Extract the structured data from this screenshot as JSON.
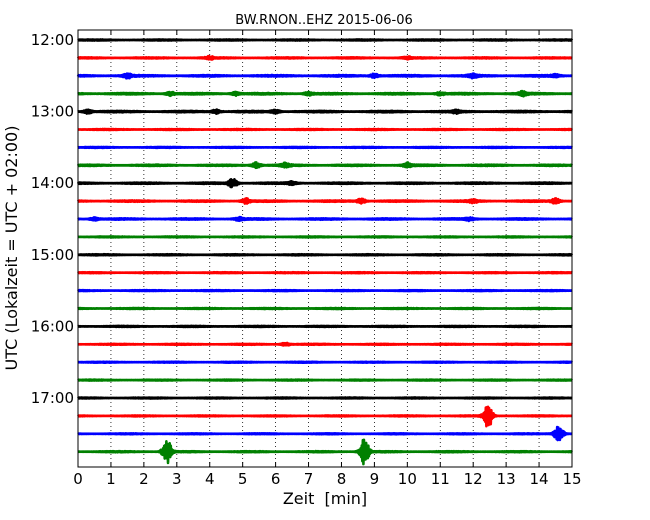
{
  "chart_data": {
    "type": "line",
    "title": "BW.RNON..EHZ 2015-06-06",
    "xlabel": "Zeit  [min]",
    "ylabel": "UTC (Lokalzeit = UTC + 02:00)",
    "xlim": [
      0,
      15
    ],
    "x_ticks": [
      "0",
      "1",
      "2",
      "3",
      "4",
      "5",
      "6",
      "7",
      "8",
      "9",
      "10",
      "11",
      "12",
      "13",
      "14",
      "15"
    ],
    "y_tick_labels": [
      "12:00",
      "13:00",
      "14:00",
      "15:00",
      "16:00",
      "17:00"
    ],
    "grid": "vertical dotted",
    "colors": [
      "#000000",
      "#ff0000",
      "#0000ff",
      "#008000"
    ],
    "trace_interval_min": 15,
    "series": [
      {
        "start": "12:00",
        "noise": 0.35,
        "events": []
      },
      {
        "start": "12:15",
        "noise": 0.35,
        "events": [
          {
            "t": 4.0,
            "amp": 1.5
          },
          {
            "t": 10.0,
            "amp": 1.2
          }
        ]
      },
      {
        "start": "12:30",
        "noise": 0.5,
        "events": [
          {
            "t": 1.5,
            "amp": 2.5
          },
          {
            "t": 9.0,
            "amp": 2.0
          },
          {
            "t": 12.0,
            "amp": 1.8
          },
          {
            "t": 14.5,
            "amp": 1.5
          }
        ]
      },
      {
        "start": "12:45",
        "noise": 0.5,
        "events": [
          {
            "t": 2.8,
            "amp": 2.0
          },
          {
            "t": 4.8,
            "amp": 1.8
          },
          {
            "t": 7.0,
            "amp": 1.5
          },
          {
            "t": 11.0,
            "amp": 1.5
          },
          {
            "t": 13.5,
            "amp": 2.0
          }
        ]
      },
      {
        "start": "13:00",
        "noise": 0.5,
        "events": [
          {
            "t": 0.3,
            "amp": 2.0
          },
          {
            "t": 4.2,
            "amp": 2.0
          },
          {
            "t": 6.0,
            "amp": 1.8
          },
          {
            "t": 11.5,
            "amp": 1.5
          }
        ]
      },
      {
        "start": "13:15",
        "noise": 0.3,
        "events": []
      },
      {
        "start": "13:30",
        "noise": 0.3,
        "events": []
      },
      {
        "start": "13:45",
        "noise": 0.45,
        "events": [
          {
            "t": 5.4,
            "amp": 3.0
          },
          {
            "t": 6.3,
            "amp": 2.0
          },
          {
            "t": 10.0,
            "amp": 2.5
          }
        ]
      },
      {
        "start": "14:00",
        "noise": 0.45,
        "events": [
          {
            "t": 4.7,
            "amp": 4.5
          },
          {
            "t": 6.5,
            "amp": 1.5
          }
        ]
      },
      {
        "start": "14:15",
        "noise": 0.45,
        "events": [
          {
            "t": 5.1,
            "amp": 2.5
          },
          {
            "t": 8.6,
            "amp": 2.5
          },
          {
            "t": 12.0,
            "amp": 1.5
          },
          {
            "t": 14.5,
            "amp": 2.5
          }
        ]
      },
      {
        "start": "14:30",
        "noise": 0.45,
        "events": [
          {
            "t": 0.5,
            "amp": 1.5
          },
          {
            "t": 4.9,
            "amp": 1.8
          },
          {
            "t": 11.9,
            "amp": 1.5
          }
        ]
      },
      {
        "start": "14:45",
        "noise": 0.3,
        "events": []
      },
      {
        "start": "15:00",
        "noise": 0.35,
        "events": []
      },
      {
        "start": "15:15",
        "noise": 0.3,
        "events": []
      },
      {
        "start": "15:30",
        "noise": 0.3,
        "events": []
      },
      {
        "start": "15:45",
        "noise": 0.3,
        "events": []
      },
      {
        "start": "16:00",
        "noise": 0.35,
        "events": []
      },
      {
        "start": "16:15",
        "noise": 0.3,
        "events": [
          {
            "t": 6.3,
            "amp": 1.5
          }
        ]
      },
      {
        "start": "16:30",
        "noise": 0.3,
        "events": []
      },
      {
        "start": "16:45",
        "noise": 0.3,
        "events": []
      },
      {
        "start": "17:00",
        "noise": 0.3,
        "events": []
      },
      {
        "start": "17:15",
        "noise": 0.3,
        "events": [
          {
            "t": 12.45,
            "amp": 12.0
          }
        ]
      },
      {
        "start": "17:30",
        "noise": 0.3,
        "events": [
          {
            "t": 14.6,
            "amp": 9.0
          }
        ]
      },
      {
        "start": "17:45",
        "noise": 0.35,
        "events": [
          {
            "t": 2.7,
            "amp": 12.0
          },
          {
            "t": 8.7,
            "amp": 13.0
          }
        ]
      }
    ]
  }
}
